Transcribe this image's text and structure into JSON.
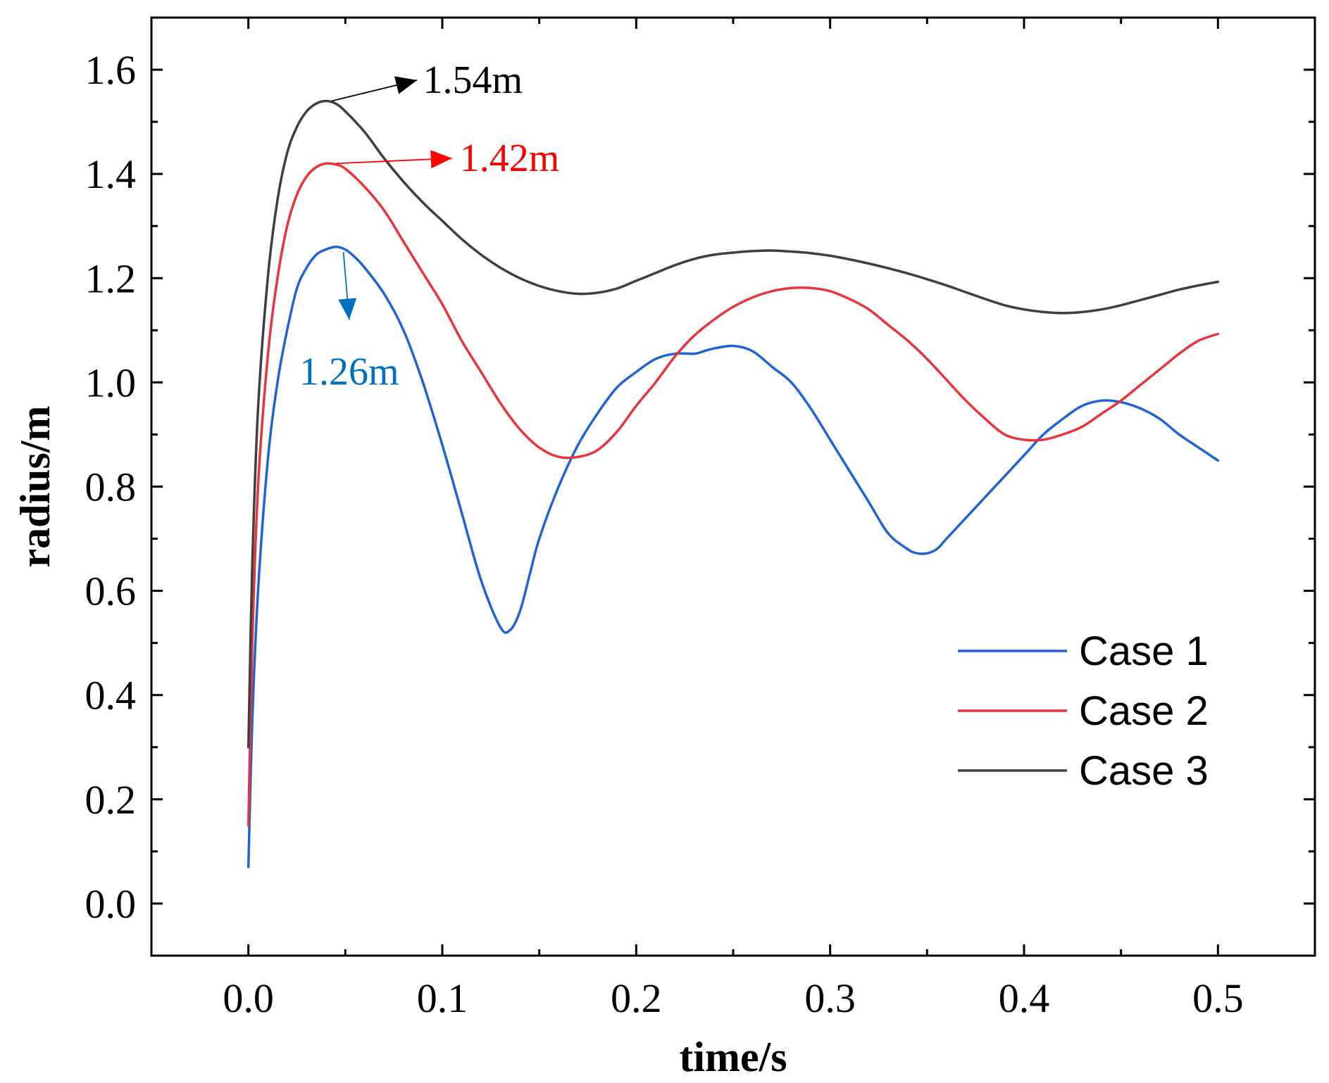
{
  "chart_data": {
    "type": "line",
    "title": "",
    "xlabel": "time/s",
    "ylabel": "radius/m",
    "xlim": [
      -0.05,
      0.55
    ],
    "ylim": [
      -0.1,
      1.7
    ],
    "xticks": [
      "0.0",
      "0.1",
      "0.2",
      "0.3",
      "0.4",
      "0.5"
    ],
    "yticks": [
      "0.0",
      "0.2",
      "0.4",
      "0.6",
      "0.8",
      "1.0",
      "1.2",
      "1.4",
      "1.6"
    ],
    "grid": false,
    "legend_position": "bottom-right",
    "series": [
      {
        "name": "Case 1",
        "color": "#1f63d6",
        "x": [
          0.0,
          0.002,
          0.005,
          0.01,
          0.015,
          0.02,
          0.025,
          0.03,
          0.035,
          0.04,
          0.045,
          0.05,
          0.055,
          0.06,
          0.07,
          0.08,
          0.09,
          0.1,
          0.11,
          0.12,
          0.13,
          0.135,
          0.14,
          0.145,
          0.15,
          0.16,
          0.17,
          0.18,
          0.19,
          0.2,
          0.21,
          0.22,
          0.23,
          0.235,
          0.24,
          0.25,
          0.26,
          0.27,
          0.28,
          0.29,
          0.3,
          0.31,
          0.32,
          0.33,
          0.34,
          0.345,
          0.35,
          0.355,
          0.36,
          0.37,
          0.38,
          0.39,
          0.4,
          0.41,
          0.42,
          0.43,
          0.44,
          0.45,
          0.46,
          0.47,
          0.48,
          0.49,
          0.5
        ],
        "y": [
          0.07,
          0.35,
          0.6,
          0.85,
          1.0,
          1.1,
          1.18,
          1.22,
          1.245,
          1.255,
          1.26,
          1.255,
          1.24,
          1.22,
          1.17,
          1.1,
          1.0,
          0.88,
          0.75,
          0.62,
          0.53,
          0.525,
          0.56,
          0.63,
          0.7,
          0.8,
          0.88,
          0.94,
          0.99,
          1.02,
          1.045,
          1.055,
          1.055,
          1.06,
          1.065,
          1.07,
          1.06,
          1.03,
          1.0,
          0.95,
          0.89,
          0.83,
          0.77,
          0.71,
          0.68,
          0.672,
          0.672,
          0.68,
          0.7,
          0.74,
          0.78,
          0.82,
          0.86,
          0.9,
          0.93,
          0.955,
          0.965,
          0.962,
          0.95,
          0.93,
          0.9,
          0.875,
          0.85
        ]
      },
      {
        "name": "Case 2",
        "color": "#e8343b",
        "x": [
          0.0,
          0.002,
          0.005,
          0.01,
          0.015,
          0.02,
          0.025,
          0.03,
          0.035,
          0.04,
          0.045,
          0.05,
          0.06,
          0.07,
          0.08,
          0.09,
          0.1,
          0.11,
          0.12,
          0.13,
          0.14,
          0.15,
          0.16,
          0.17,
          0.18,
          0.19,
          0.2,
          0.21,
          0.22,
          0.23,
          0.24,
          0.25,
          0.26,
          0.27,
          0.28,
          0.29,
          0.3,
          0.31,
          0.32,
          0.33,
          0.34,
          0.35,
          0.36,
          0.37,
          0.38,
          0.39,
          0.4,
          0.41,
          0.42,
          0.43,
          0.44,
          0.45,
          0.46,
          0.47,
          0.48,
          0.49,
          0.5
        ],
        "y": [
          0.15,
          0.5,
          0.8,
          1.05,
          1.2,
          1.3,
          1.36,
          1.395,
          1.413,
          1.42,
          1.418,
          1.41,
          1.375,
          1.33,
          1.27,
          1.21,
          1.15,
          1.08,
          1.02,
          0.96,
          0.91,
          0.875,
          0.857,
          0.857,
          0.87,
          0.905,
          0.955,
          1.0,
          1.05,
          1.09,
          1.12,
          1.145,
          1.163,
          1.175,
          1.181,
          1.181,
          1.175,
          1.16,
          1.14,
          1.11,
          1.08,
          1.045,
          1.005,
          0.965,
          0.93,
          0.9,
          0.89,
          0.89,
          0.9,
          0.915,
          0.94,
          0.965,
          0.995,
          1.025,
          1.055,
          1.08,
          1.093
        ]
      },
      {
        "name": "Case 3",
        "color": "#3f3f3f",
        "x": [
          0.0,
          0.002,
          0.005,
          0.01,
          0.015,
          0.02,
          0.025,
          0.03,
          0.035,
          0.04,
          0.045,
          0.05,
          0.06,
          0.07,
          0.08,
          0.09,
          0.1,
          0.11,
          0.12,
          0.13,
          0.14,
          0.15,
          0.16,
          0.17,
          0.18,
          0.19,
          0.2,
          0.21,
          0.22,
          0.23,
          0.24,
          0.25,
          0.26,
          0.27,
          0.28,
          0.29,
          0.3,
          0.31,
          0.32,
          0.33,
          0.34,
          0.35,
          0.36,
          0.37,
          0.38,
          0.39,
          0.4,
          0.41,
          0.42,
          0.43,
          0.44,
          0.45,
          0.46,
          0.47,
          0.48,
          0.49,
          0.5
        ],
        "y": [
          0.3,
          0.65,
          0.95,
          1.2,
          1.35,
          1.44,
          1.49,
          1.52,
          1.535,
          1.54,
          1.535,
          1.52,
          1.48,
          1.43,
          1.385,
          1.345,
          1.31,
          1.275,
          1.245,
          1.22,
          1.2,
          1.185,
          1.175,
          1.17,
          1.172,
          1.18,
          1.195,
          1.21,
          1.225,
          1.237,
          1.245,
          1.249,
          1.252,
          1.253,
          1.251,
          1.248,
          1.243,
          1.236,
          1.228,
          1.219,
          1.209,
          1.198,
          1.186,
          1.173,
          1.16,
          1.148,
          1.14,
          1.135,
          1.133,
          1.135,
          1.14,
          1.148,
          1.158,
          1.168,
          1.178,
          1.186,
          1.193
        ]
      }
    ],
    "annotations": [
      {
        "text": "1.54m",
        "series": "Case 3",
        "color": "#000000",
        "at_x": 0.043,
        "at_y": 1.54,
        "to_x": 0.087,
        "to_y": 1.58,
        "label_x": 0.09,
        "label_y": 1.58
      },
      {
        "text": "1.42m",
        "series": "Case 2",
        "color": "#ff0000",
        "at_x": 0.045,
        "at_y": 1.42,
        "to_x": 0.105,
        "to_y": 1.43,
        "label_x": 0.109,
        "label_y": 1.43
      },
      {
        "text": "1.26m",
        "series": "Case 1",
        "color": "#0070c0",
        "at_x": 0.049,
        "at_y": 1.25,
        "to_x": 0.052,
        "to_y": 1.12,
        "label_x": 0.052,
        "label_y": 1.02
      }
    ]
  }
}
